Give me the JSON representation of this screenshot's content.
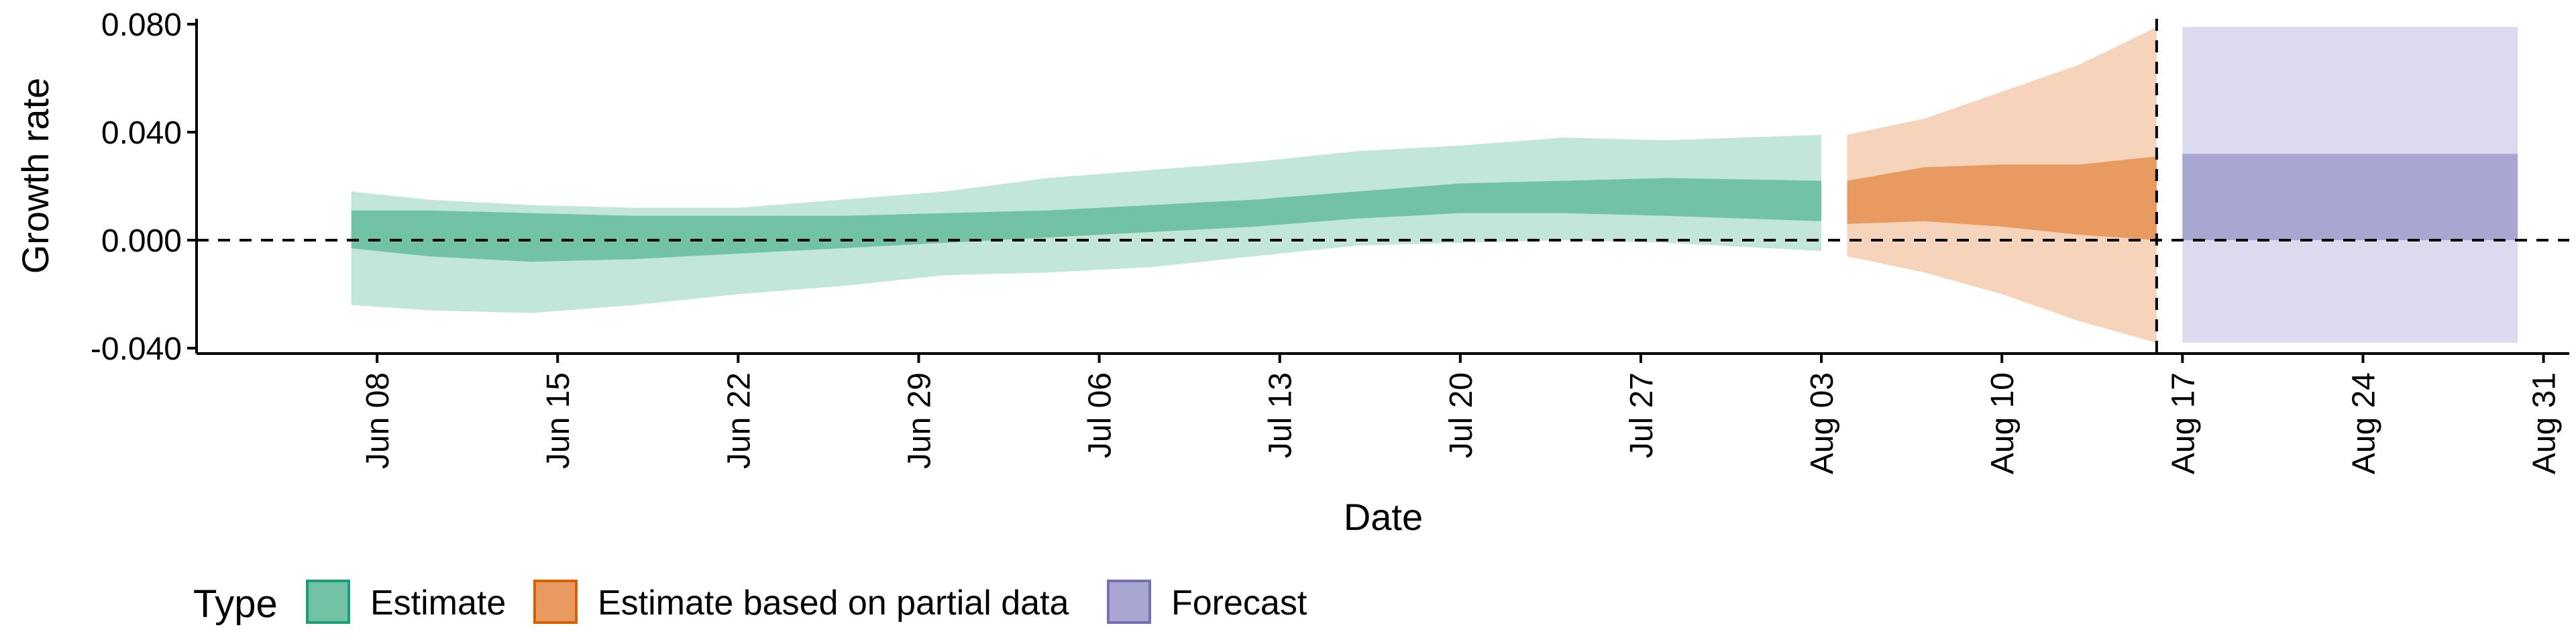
{
  "chart_data": {
    "type": "area",
    "xlabel": "Date",
    "ylabel": "Growth rate",
    "x_range": [
      "2020-06-01",
      "2020-09-01"
    ],
    "ylim": [
      -0.042,
      0.082
    ],
    "y_ticks": [
      {
        "value": 0.08,
        "label": "0.080"
      },
      {
        "value": 0.04,
        "label": "0.040"
      },
      {
        "value": 0.0,
        "label": "0.000"
      },
      {
        "value": -0.04,
        "label": "-0.040"
      }
    ],
    "x_ticks": [
      {
        "date": "2020-06-08",
        "label": "Jun 08"
      },
      {
        "date": "2020-06-15",
        "label": "Jun 15"
      },
      {
        "date": "2020-06-22",
        "label": "Jun 22"
      },
      {
        "date": "2020-06-29",
        "label": "Jun 29"
      },
      {
        "date": "2020-07-06",
        "label": "Jul 06"
      },
      {
        "date": "2020-07-13",
        "label": "Jul 13"
      },
      {
        "date": "2020-07-20",
        "label": "Jul 20"
      },
      {
        "date": "2020-07-27",
        "label": "Jul 27"
      },
      {
        "date": "2020-08-03",
        "label": "Aug 03"
      },
      {
        "date": "2020-08-10",
        "label": "Aug 10"
      },
      {
        "date": "2020-08-17",
        "label": "Aug 17"
      },
      {
        "date": "2020-08-24",
        "label": "Aug 24"
      },
      {
        "date": "2020-08-31",
        "label": "Aug 31"
      }
    ],
    "reference_lines": {
      "horizontal_y": 0.0,
      "vertical_date": "2020-08-16"
    },
    "legend": {
      "title": "Type",
      "position": "bottom",
      "entries": [
        {
          "label": "Estimate",
          "fill": "#72c2a6",
          "stroke": "#1b9e77"
        },
        {
          "label": "Estimate based on partial data",
          "fill": "#e89a60",
          "stroke": "#d95f02"
        },
        {
          "label": "Forecast",
          "fill": "#a9a6d1",
          "stroke": "#7570b3"
        }
      ]
    },
    "series": [
      {
        "type_label": "Estimate",
        "outer_color": "#c3e6da",
        "inner_color": "#72c2a6",
        "points": [
          {
            "date": "2020-06-07",
            "outer_lo": -0.024,
            "inner_lo": -0.003,
            "inner_hi": 0.011,
            "outer_hi": 0.018
          },
          {
            "date": "2020-06-10",
            "outer_lo": -0.026,
            "inner_lo": -0.006,
            "inner_hi": 0.011,
            "outer_hi": 0.015
          },
          {
            "date": "2020-06-14",
            "outer_lo": -0.027,
            "inner_lo": -0.008,
            "inner_hi": 0.01,
            "outer_hi": 0.013
          },
          {
            "date": "2020-06-18",
            "outer_lo": -0.024,
            "inner_lo": -0.007,
            "inner_hi": 0.009,
            "outer_hi": 0.012
          },
          {
            "date": "2020-06-22",
            "outer_lo": -0.02,
            "inner_lo": -0.005,
            "inner_hi": 0.009,
            "outer_hi": 0.012
          },
          {
            "date": "2020-06-26",
            "outer_lo": -0.017,
            "inner_lo": -0.003,
            "inner_hi": 0.009,
            "outer_hi": 0.015
          },
          {
            "date": "2020-06-30",
            "outer_lo": -0.013,
            "inner_lo": -0.001,
            "inner_hi": 0.01,
            "outer_hi": 0.018
          },
          {
            "date": "2020-07-04",
            "outer_lo": -0.012,
            "inner_lo": 0.001,
            "inner_hi": 0.011,
            "outer_hi": 0.023
          },
          {
            "date": "2020-07-08",
            "outer_lo": -0.01,
            "inner_lo": 0.003,
            "inner_hi": 0.013,
            "outer_hi": 0.026
          },
          {
            "date": "2020-07-12",
            "outer_lo": -0.006,
            "inner_lo": 0.005,
            "inner_hi": 0.015,
            "outer_hi": 0.029
          },
          {
            "date": "2020-07-16",
            "outer_lo": -0.002,
            "inner_lo": 0.008,
            "inner_hi": 0.018,
            "outer_hi": 0.033
          },
          {
            "date": "2020-07-20",
            "outer_lo": -0.001,
            "inner_lo": 0.01,
            "inner_hi": 0.021,
            "outer_hi": 0.035
          },
          {
            "date": "2020-07-24",
            "outer_lo": 0.0,
            "inner_lo": 0.01,
            "inner_hi": 0.022,
            "outer_hi": 0.038
          },
          {
            "date": "2020-07-28",
            "outer_lo": -0.001,
            "inner_lo": 0.009,
            "inner_hi": 0.023,
            "outer_hi": 0.037
          },
          {
            "date": "2020-08-03",
            "outer_lo": -0.004,
            "inner_lo": 0.007,
            "inner_hi": 0.022,
            "outer_hi": 0.039
          }
        ]
      },
      {
        "type_label": "Estimate based on partial data",
        "outer_color": "#f6d3bb",
        "inner_color": "#e89a60",
        "points": [
          {
            "date": "2020-08-04",
            "outer_lo": -0.006,
            "inner_lo": 0.006,
            "inner_hi": 0.022,
            "outer_hi": 0.039
          },
          {
            "date": "2020-08-07",
            "outer_lo": -0.012,
            "inner_lo": 0.007,
            "inner_hi": 0.027,
            "outer_hi": 0.045
          },
          {
            "date": "2020-08-10",
            "outer_lo": -0.02,
            "inner_lo": 0.005,
            "inner_hi": 0.028,
            "outer_hi": 0.055
          },
          {
            "date": "2020-08-13",
            "outer_lo": -0.03,
            "inner_lo": 0.002,
            "inner_hi": 0.028,
            "outer_hi": 0.065
          },
          {
            "date": "2020-08-16",
            "outer_lo": -0.038,
            "inner_lo": 0.0,
            "inner_hi": 0.031,
            "outer_hi": 0.079
          }
        ]
      },
      {
        "type_label": "Forecast",
        "outer_color": "#dcdaee",
        "inner_color": "#a9a6d1",
        "points": [
          {
            "date": "2020-08-17",
            "outer_lo": -0.038,
            "inner_lo": 0.0,
            "inner_hi": 0.032,
            "outer_hi": 0.079
          },
          {
            "date": "2020-08-30",
            "outer_lo": -0.038,
            "inner_lo": 0.0,
            "inner_hi": 0.032,
            "outer_hi": 0.079
          }
        ]
      }
    ]
  }
}
